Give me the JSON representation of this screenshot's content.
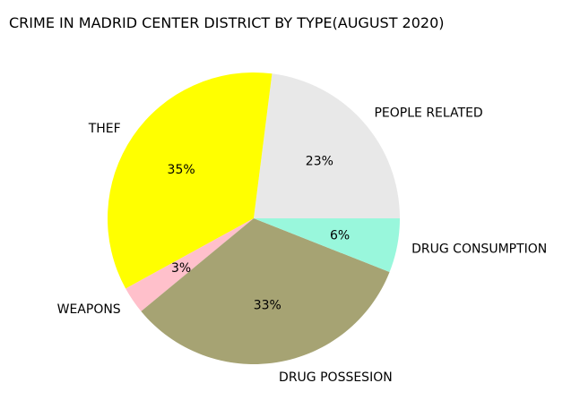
{
  "chart_data": {
    "type": "pie",
    "title": "CRIME IN MADRID CENTER DISTRICT BY TYPE(AUGUST 2020)",
    "start_angle_deg": 0,
    "direction": "counterclockwise",
    "slices": [
      {
        "label": "PEOPLE RELATED",
        "value": 23,
        "pct_label": "23%",
        "color": "#e8e8e8"
      },
      {
        "label": "THEF",
        "value": 35,
        "pct_label": "35%",
        "color": "#ffff00"
      },
      {
        "label": "WEAPONS",
        "value": 3,
        "pct_label": "3%",
        "color": "#ffc0cb"
      },
      {
        "label": "DRUG POSSESION",
        "value": 33,
        "pct_label": "33%",
        "color": "#a6a373"
      },
      {
        "label": "DRUG CONSUMPTION",
        "value": 6,
        "pct_label": "6%",
        "color": "#99f7dc"
      }
    ]
  }
}
